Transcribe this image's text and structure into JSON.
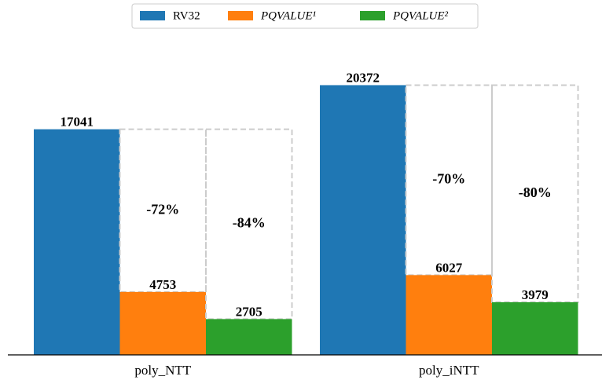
{
  "chart_data": {
    "type": "bar",
    "categories": [
      "poly_NTT",
      "poly_iNTT"
    ],
    "series": [
      {
        "name": "RV32",
        "color": "#1f77b4",
        "values": [
          17041,
          20372
        ]
      },
      {
        "name": "PQVALUE¹",
        "color": "#ff7f0e",
        "values": [
          4753,
          6027
        ]
      },
      {
        "name": "PQVALUE²",
        "color": "#2ca02c",
        "values": [
          2705,
          3979
        ]
      }
    ],
    "annotations": [
      [
        "-72%",
        "-84%"
      ],
      [
        "-70%",
        "-80%"
      ]
    ],
    "ylim": [
      0,
      22000
    ],
    "legend": "top"
  }
}
